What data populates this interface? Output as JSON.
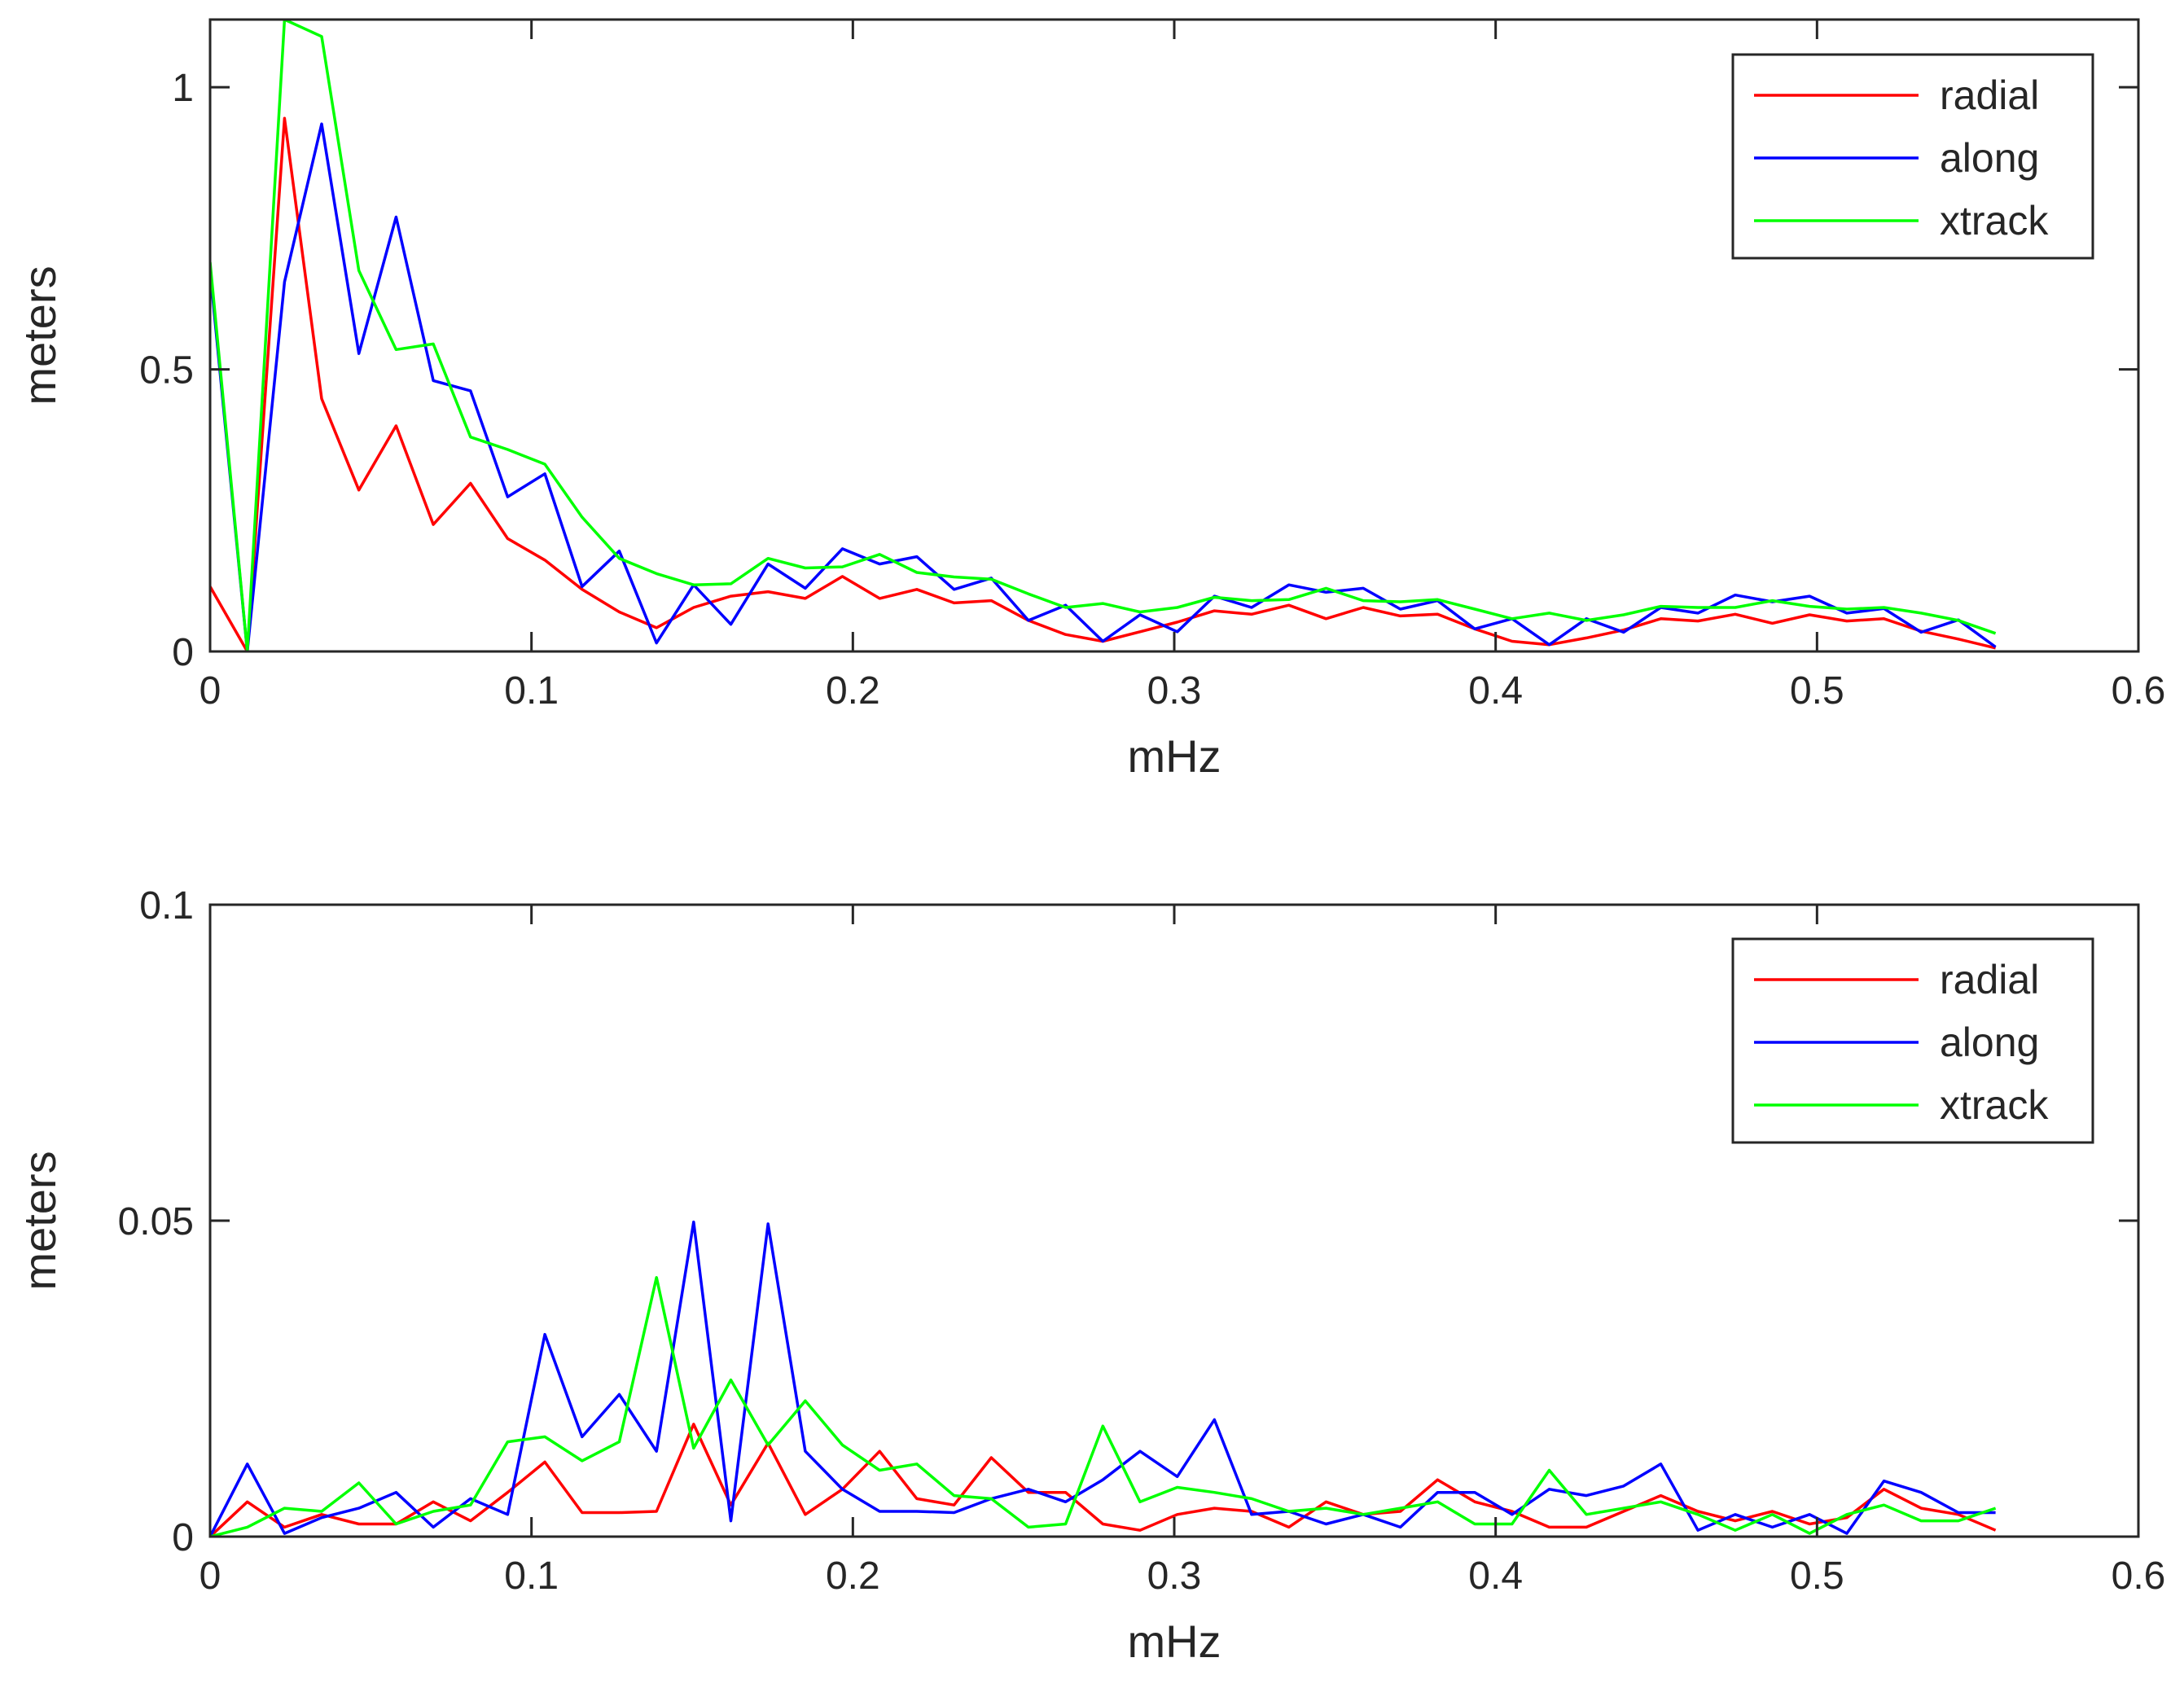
{
  "chart_data": [
    {
      "type": "line",
      "xlabel": "mHz",
      "ylabel": "meters",
      "xlim": [
        0,
        0.6
      ],
      "ylim": [
        0,
        1.12
      ],
      "xticks": [
        0,
        0.1,
        0.2,
        0.3,
        0.4,
        0.5,
        0.6
      ],
      "xtick_labels": [
        "0",
        "0.1",
        "0.2",
        "0.3",
        "0.4",
        "0.5",
        "0.6"
      ],
      "yticks": [
        0,
        0.5,
        1
      ],
      "ytick_labels": [
        "0",
        "0.5",
        "1"
      ],
      "legend_position": "top-right",
      "x": [
        0,
        0.01157,
        0.02315,
        0.03472,
        0.0463,
        0.05787,
        0.06944,
        0.08102,
        0.09259,
        0.10417,
        0.11574,
        0.12731,
        0.13889,
        0.15046,
        0.16204,
        0.17361,
        0.18519,
        0.19676,
        0.20833,
        0.21991,
        0.23148,
        0.24306,
        0.25463,
        0.2662,
        0.27778,
        0.28935,
        0.30093,
        0.3125,
        0.32407,
        0.33565,
        0.34722,
        0.3588,
        0.37037,
        0.38194,
        0.39352,
        0.40509,
        0.41667,
        0.42824,
        0.43981,
        0.45139,
        0.46296,
        0.47454,
        0.48611,
        0.49769,
        0.50926,
        0.52083,
        0.53241,
        0.54398,
        0.55556
      ],
      "series": [
        {
          "name": "radial",
          "color": "#ff0000",
          "values": [
            0.115,
            0.0,
            0.945,
            0.448,
            0.286,
            0.4,
            0.225,
            0.298,
            0.2,
            0.162,
            0.11,
            0.07,
            0.042,
            0.078,
            0.098,
            0.106,
            0.094,
            0.133,
            0.094,
            0.11,
            0.086,
            0.09,
            0.055,
            0.03,
            0.018,
            0.035,
            0.052,
            0.072,
            0.066,
            0.082,
            0.058,
            0.078,
            0.063,
            0.066,
            0.04,
            0.018,
            0.012,
            0.024,
            0.038,
            0.058,
            0.054,
            0.066,
            0.05,
            0.065,
            0.054,
            0.058,
            0.036,
            0.022,
            0.006
          ]
        },
        {
          "name": "along",
          "color": "#0000ff",
          "values": [
            0.675,
            0.0,
            0.655,
            0.935,
            0.528,
            0.77,
            0.48,
            0.462,
            0.274,
            0.315,
            0.115,
            0.178,
            0.015,
            0.118,
            0.048,
            0.155,
            0.112,
            0.182,
            0.155,
            0.168,
            0.11,
            0.13,
            0.055,
            0.082,
            0.018,
            0.065,
            0.035,
            0.098,
            0.078,
            0.118,
            0.105,
            0.112,
            0.075,
            0.09,
            0.04,
            0.058,
            0.012,
            0.058,
            0.034,
            0.078,
            0.068,
            0.1,
            0.088,
            0.098,
            0.068,
            0.076,
            0.034,
            0.056,
            0.008
          ]
        },
        {
          "name": "xtrack",
          "color": "#00ff00",
          "values": [
            0.69,
            0.0,
            1.12,
            1.09,
            0.675,
            0.535,
            0.545,
            0.38,
            0.358,
            0.332,
            0.238,
            0.165,
            0.138,
            0.118,
            0.12,
            0.165,
            0.148,
            0.15,
            0.172,
            0.14,
            0.132,
            0.128,
            0.102,
            0.078,
            0.085,
            0.07,
            0.078,
            0.096,
            0.09,
            0.092,
            0.112,
            0.09,
            0.088,
            0.092,
            0.075,
            0.058,
            0.068,
            0.055,
            0.065,
            0.08,
            0.078,
            0.078,
            0.09,
            0.08,
            0.075,
            0.078,
            0.068,
            0.055,
            0.032
          ]
        }
      ]
    },
    {
      "type": "line",
      "xlabel": "mHz",
      "ylabel": "meters",
      "xlim": [
        0,
        0.6
      ],
      "ylim": [
        0,
        0.1
      ],
      "xticks": [
        0,
        0.1,
        0.2,
        0.3,
        0.4,
        0.5,
        0.6
      ],
      "xtick_labels": [
        "0",
        "0.1",
        "0.2",
        "0.3",
        "0.4",
        "0.5",
        "0.6"
      ],
      "yticks": [
        0,
        0.05,
        0.1
      ],
      "ytick_labels": [
        "0",
        "0.05",
        "0.1"
      ],
      "legend_position": "top-right",
      "x": [
        0,
        0.01157,
        0.02315,
        0.03472,
        0.0463,
        0.05787,
        0.06944,
        0.08102,
        0.09259,
        0.10417,
        0.11574,
        0.12731,
        0.13889,
        0.15046,
        0.16204,
        0.17361,
        0.18519,
        0.19676,
        0.20833,
        0.21991,
        0.23148,
        0.24306,
        0.25463,
        0.2662,
        0.27778,
        0.28935,
        0.30093,
        0.3125,
        0.32407,
        0.33565,
        0.34722,
        0.3588,
        0.37037,
        0.38194,
        0.39352,
        0.40509,
        0.41667,
        0.42824,
        0.43981,
        0.45139,
        0.46296,
        0.47454,
        0.48611,
        0.49769,
        0.50926,
        0.52083,
        0.53241,
        0.54398,
        0.55556
      ],
      "series": [
        {
          "name": "radial",
          "color": "#ff0000",
          "values": [
            0.0,
            0.0055,
            0.0015,
            0.0035,
            0.002,
            0.002,
            0.0055,
            0.0025,
            0.007,
            0.0118,
            0.0038,
            0.0038,
            0.004,
            0.0178,
            0.005,
            0.0148,
            0.0035,
            0.0075,
            0.0135,
            0.006,
            0.005,
            0.0125,
            0.007,
            0.007,
            0.002,
            0.001,
            0.0035,
            0.0045,
            0.004,
            0.0015,
            0.0055,
            0.0035,
            0.004,
            0.009,
            0.0055,
            0.004,
            0.0015,
            0.0015,
            0.004,
            0.0065,
            0.004,
            0.0025,
            0.004,
            0.002,
            0.003,
            0.0075,
            0.0045,
            0.0035,
            0.001
          ]
        },
        {
          "name": "along",
          "color": "#0000ff",
          "values": [
            0.0,
            0.0115,
            0.0005,
            0.003,
            0.0045,
            0.007,
            0.0015,
            0.006,
            0.0035,
            0.032,
            0.0158,
            0.0225,
            0.0135,
            0.0498,
            0.0025,
            0.0495,
            0.0135,
            0.0075,
            0.004,
            0.004,
            0.0038,
            0.006,
            0.0075,
            0.0055,
            0.009,
            0.0135,
            0.0095,
            0.0185,
            0.0035,
            0.004,
            0.002,
            0.0035,
            0.0015,
            0.007,
            0.007,
            0.0035,
            0.0075,
            0.0065,
            0.008,
            0.0115,
            0.001,
            0.0035,
            0.0015,
            0.0035,
            0.0005,
            0.0088,
            0.007,
            0.0038,
            0.0038
          ]
        },
        {
          "name": "xtrack",
          "color": "#00ff00",
          "values": [
            0.0,
            0.0015,
            0.0045,
            0.004,
            0.0085,
            0.002,
            0.004,
            0.005,
            0.015,
            0.0158,
            0.012,
            0.015,
            0.041,
            0.014,
            0.0248,
            0.0145,
            0.0215,
            0.0145,
            0.0105,
            0.0115,
            0.0065,
            0.006,
            0.0015,
            0.002,
            0.0175,
            0.0055,
            0.0078,
            0.007,
            0.006,
            0.004,
            0.0045,
            0.0035,
            0.0045,
            0.0055,
            0.002,
            0.002,
            0.0105,
            0.0035,
            0.0045,
            0.0055,
            0.0035,
            0.001,
            0.0035,
            0.0005,
            0.0035,
            0.005,
            0.0025,
            0.0025,
            0.0045
          ]
        }
      ]
    }
  ]
}
